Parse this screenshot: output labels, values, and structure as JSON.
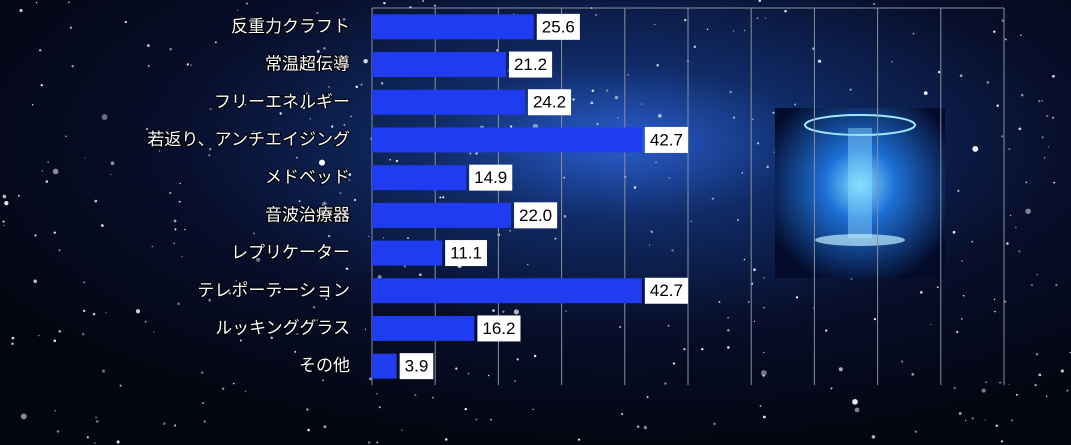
{
  "chart_data": {
    "type": "bar",
    "orientation": "horizontal",
    "categories": [
      "反重力クラフト",
      "常温超伝導",
      "フリーエネルギー",
      "若返り、アンチエイジング",
      "メドベッド",
      "音波治療器",
      "レプリケーター",
      "テレポーテーション",
      "ルッキンググラス",
      "その他"
    ],
    "values": [
      25.6,
      21.2,
      24.2,
      42.7,
      14.9,
      22.0,
      11.1,
      42.7,
      16.2,
      3.9
    ],
    "value_labels": [
      "25.6",
      "21.2",
      "24.2",
      "42.7",
      "14.9",
      "22.0",
      "11.1",
      "42.7",
      "16.2",
      "3.9"
    ],
    "color": "#1f3cf0",
    "xlim": [
      0,
      100
    ],
    "xticks": [
      0,
      10,
      20,
      30,
      40,
      50,
      60,
      70,
      80,
      90,
      100
    ],
    "grid": true
  }
}
